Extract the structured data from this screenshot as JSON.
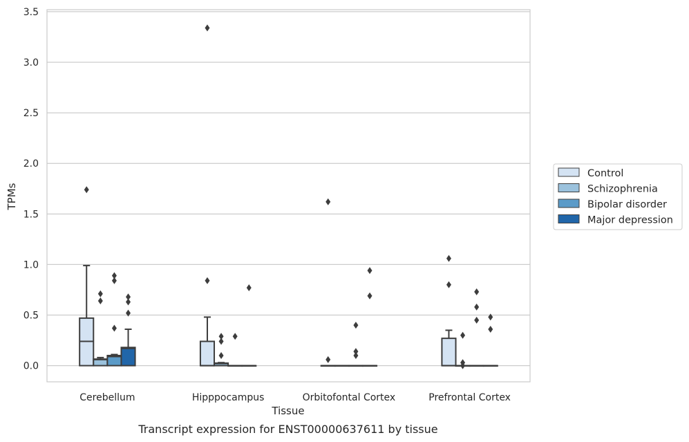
{
  "caption": "Transcript expression for ENST00000637611 by tissue",
  "chart_data": {
    "type": "box",
    "xlabel": "Tissue",
    "ylabel": "TPMs",
    "ylim": [
      -0.16,
      3.52
    ],
    "yticks": [
      "0.0",
      "0.5",
      "1.0",
      "1.5",
      "2.0",
      "2.5",
      "3.0",
      "3.5"
    ],
    "ytick_values": [
      0,
      0.5,
      1.0,
      1.5,
      2.0,
      2.5,
      3.0,
      3.5
    ],
    "grid": "horizontal",
    "legend_position": "right",
    "categories": [
      "Cerebellum",
      "Hipppocampus",
      "Orbitofontal Cortex",
      "Prefrontal Cortex"
    ],
    "series": [
      {
        "name": "Control",
        "color": "#d4e3f3",
        "boxes": [
          {
            "q1": 0,
            "median": 0.24,
            "q3": 0.47,
            "whislo": 0,
            "whishi": 0.99,
            "fliers": [
              1.74
            ]
          },
          {
            "q1": 0,
            "median": 0,
            "q3": 0.24,
            "whislo": 0,
            "whishi": 0.48,
            "fliers": [
              0.84,
              3.34
            ]
          },
          {
            "q1": 0,
            "median": 0,
            "q3": 0,
            "whislo": 0,
            "whishi": 0,
            "fliers": [
              0.06,
              1.62
            ]
          },
          {
            "q1": 0,
            "median": 0,
            "q3": 0.27,
            "whislo": 0,
            "whishi": 0.35,
            "fliers": [
              0.8,
              1.06
            ]
          }
        ]
      },
      {
        "name": "Schizophrenia",
        "color": "#9bc2dd",
        "boxes": [
          {
            "q1": 0,
            "median": 0.06,
            "q3": 0.065,
            "whislo": 0,
            "whishi": 0.08,
            "fliers": [
              0.64,
              0.71
            ]
          },
          {
            "q1": 0,
            "median": 0.02,
            "q3": 0.025,
            "whislo": 0,
            "whishi": 0.03,
            "fliers": [
              0.1,
              0.24,
              0.29
            ]
          },
          {
            "q1": 0,
            "median": 0,
            "q3": 0,
            "whislo": 0,
            "whishi": 0,
            "fliers": []
          },
          {
            "q1": 0,
            "median": 0,
            "q3": 0,
            "whislo": 0,
            "whishi": 0,
            "fliers": [
              0.0,
              0.03,
              0.3
            ]
          }
        ]
      },
      {
        "name": "Bipolar disorder",
        "color": "#5b9bc8",
        "boxes": [
          {
            "q1": 0,
            "median": 0.09,
            "q3": 0.1,
            "whislo": 0,
            "whishi": 0.11,
            "fliers": [
              0.37,
              0.84,
              0.89
            ]
          },
          {
            "q1": 0,
            "median": 0,
            "q3": 0,
            "whislo": 0,
            "whishi": 0,
            "fliers": [
              0.29
            ]
          },
          {
            "q1": 0,
            "median": 0,
            "q3": 0,
            "whislo": 0,
            "whishi": 0,
            "fliers": [
              0.1,
              0.14,
              0.4
            ]
          },
          {
            "q1": 0,
            "median": 0,
            "q3": 0,
            "whislo": 0,
            "whishi": 0,
            "fliers": [
              0.45,
              0.58,
              0.73
            ]
          }
        ]
      },
      {
        "name": "Major depression",
        "color": "#2166a9",
        "boxes": [
          {
            "q1": 0,
            "median": 0.17,
            "q3": 0.18,
            "whislo": 0,
            "whishi": 0.36,
            "fliers": [
              0.52,
              0.63,
              0.68
            ]
          },
          {
            "q1": 0,
            "median": 0,
            "q3": 0,
            "whislo": 0,
            "whishi": 0,
            "fliers": [
              0.77
            ]
          },
          {
            "q1": 0,
            "median": 0,
            "q3": 0,
            "whislo": 0,
            "whishi": 0,
            "fliers": [
              0.69,
              0.94
            ]
          },
          {
            "q1": 0,
            "median": 0,
            "q3": 0,
            "whislo": 0,
            "whishi": 0,
            "fliers": [
              0.36,
              0.48
            ]
          }
        ]
      }
    ]
  }
}
